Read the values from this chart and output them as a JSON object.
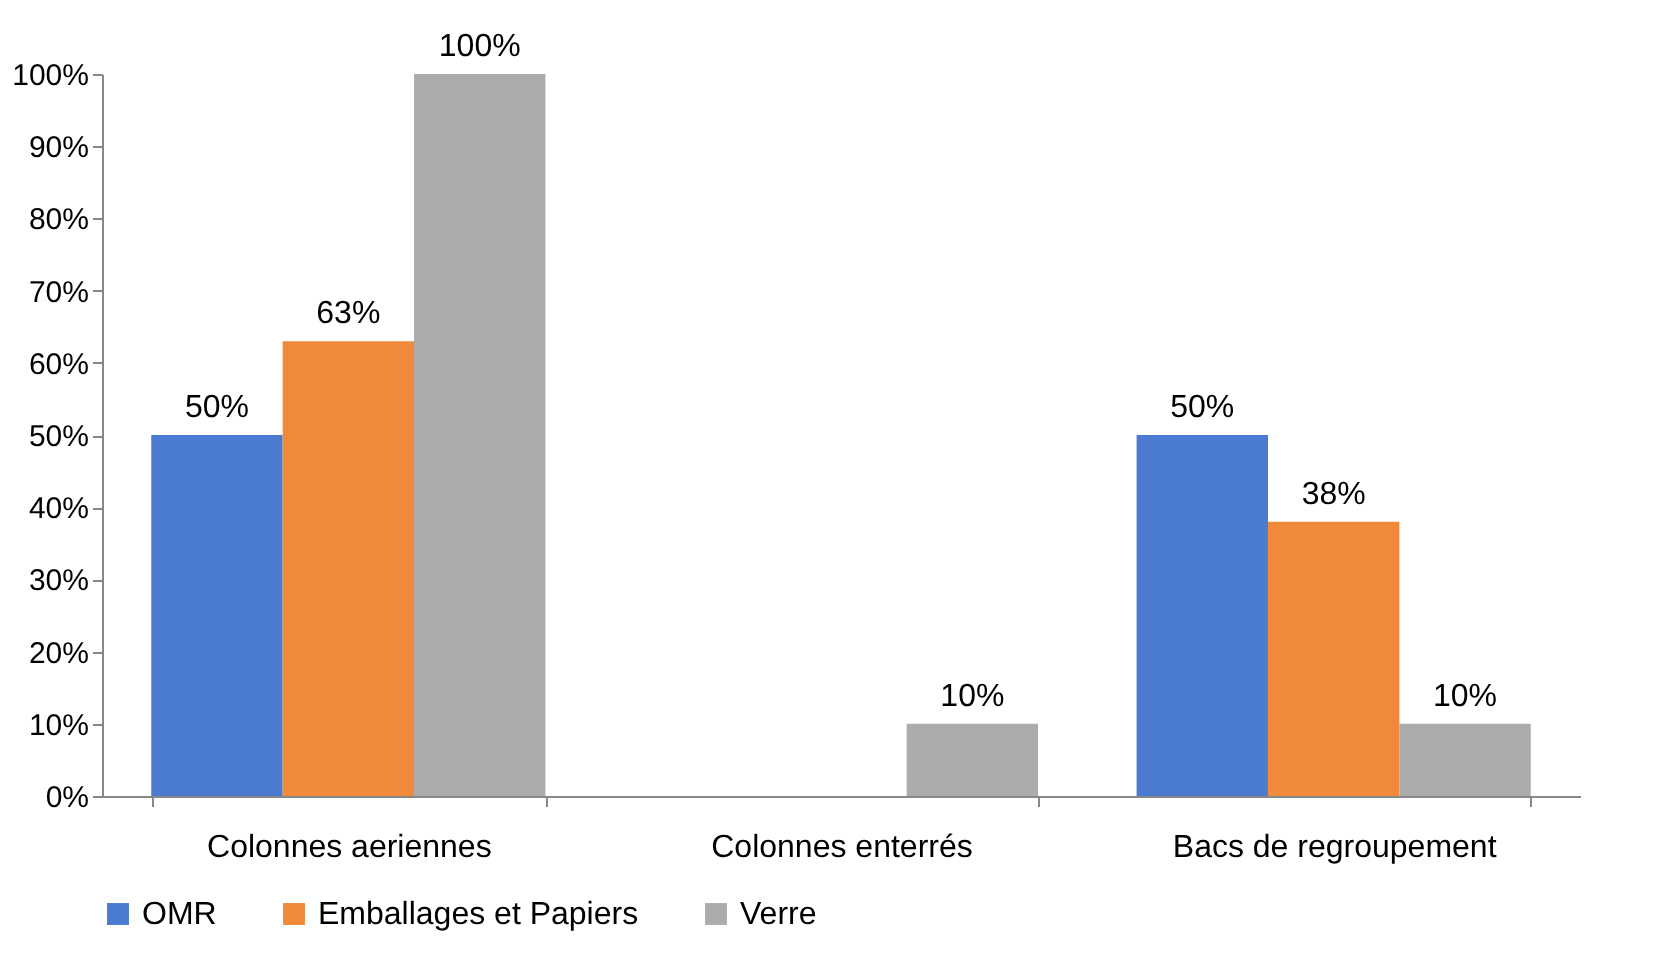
{
  "chart_data": {
    "type": "bar",
    "categories": [
      "Colonnes aeriennes",
      "Colonnes enterrés",
      "Bacs de regroupement"
    ],
    "series": [
      {
        "name": "OMR",
        "color": "#4a7bd0",
        "values": [
          50,
          null,
          50
        ],
        "value_labels": [
          "50%",
          null,
          "50%"
        ]
      },
      {
        "name": "Emballages et Papiers",
        "color": "#f08a3a",
        "values": [
          63,
          null,
          38
        ],
        "value_labels": [
          "63%",
          null,
          "38%"
        ]
      },
      {
        "name": "Verre",
        "color": "#acacac",
        "values": [
          100,
          10,
          10
        ],
        "value_labels": [
          "100%",
          "10%",
          "10%"
        ]
      }
    ],
    "ylim": [
      0,
      100
    ],
    "yticks": [
      {
        "value": 0,
        "label": "0%"
      },
      {
        "value": 10,
        "label": "10%"
      },
      {
        "value": 20,
        "label": "20%"
      },
      {
        "value": 30,
        "label": "30%"
      },
      {
        "value": 40,
        "label": "40%"
      },
      {
        "value": 50,
        "label": "50%"
      },
      {
        "value": 60,
        "label": "60%"
      },
      {
        "value": 70,
        "label": "70%"
      },
      {
        "value": 80,
        "label": "80%"
      },
      {
        "value": 90,
        "label": "90%"
      },
      {
        "value": 100,
        "label": "100%"
      }
    ],
    "grid": false,
    "legend": "bottom"
  }
}
